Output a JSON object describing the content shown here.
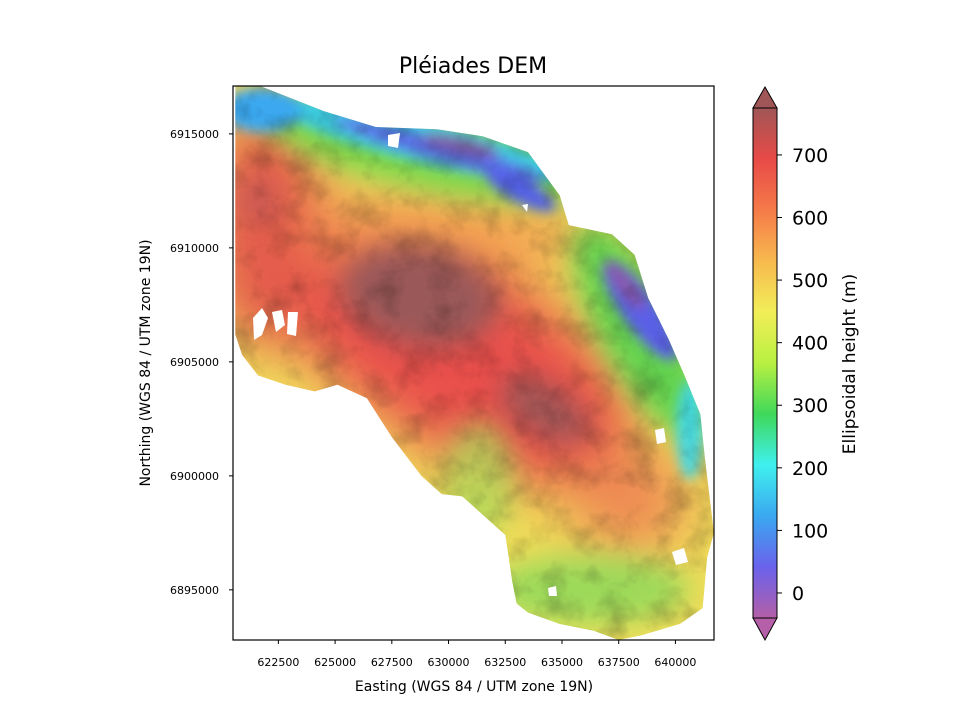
{
  "title": "Pléiades DEM",
  "xlabel": "Easting (WGS 84 / UTM zone 19N)",
  "ylabel": "Northing (WGS 84 / UTM zone 19N)",
  "colorbar": {
    "label": "Ellipsoidal height (m)",
    "min": -40,
    "max": 775,
    "extend": "both",
    "ticks": [
      0,
      100,
      200,
      300,
      400,
      500,
      600,
      700
    ],
    "colors": [
      "#b45fa8",
      "#6a62ec",
      "#3aa8f0",
      "#3ff0ee",
      "#3fd85a",
      "#b8f041",
      "#f2ee58",
      "#f7b94e",
      "#f57a49",
      "#e84a47",
      "#a05656"
    ]
  },
  "axes": {
    "xlim": [
      620500,
      641700
    ],
    "ylim": [
      6892800,
      6917100
    ],
    "xticks": [
      622500,
      625000,
      627500,
      630000,
      632500,
      635000,
      637500,
      640000
    ],
    "yticks": [
      6895000,
      6900000,
      6905000,
      6910000,
      6915000
    ]
  },
  "map": {
    "boundary_easting_northing": [
      [
        620600,
        6917100
      ],
      [
        621700,
        6917100
      ],
      [
        624500,
        6916000
      ],
      [
        626800,
        6915300
      ],
      [
        629500,
        6915200
      ],
      [
        631500,
        6914900
      ],
      [
        633500,
        6914200
      ],
      [
        634900,
        6912300
      ],
      [
        635300,
        6911000
      ],
      [
        637200,
        6910600
      ],
      [
        638200,
        6909700
      ],
      [
        638800,
        6907800
      ],
      [
        639700,
        6906000
      ],
      [
        640400,
        6904400
      ],
      [
        641100,
        6902700
      ],
      [
        641300,
        6900800
      ],
      [
        641700,
        6897500
      ],
      [
        641400,
        6896400
      ],
      [
        641200,
        6894200
      ],
      [
        640200,
        6893500
      ],
      [
        638500,
        6893000
      ],
      [
        637500,
        6892800
      ],
      [
        636400,
        6893200
      ],
      [
        634900,
        6893500
      ],
      [
        633500,
        6894000
      ],
      [
        633000,
        6894400
      ],
      [
        632800,
        6895400
      ],
      [
        632500,
        6897400
      ],
      [
        631500,
        6898300
      ],
      [
        630600,
        6899100
      ],
      [
        629700,
        6899200
      ],
      [
        628800,
        6900000
      ],
      [
        627500,
        6901700
      ],
      [
        626400,
        6903400
      ],
      [
        625100,
        6904000
      ],
      [
        624100,
        6903700
      ],
      [
        622800,
        6904000
      ],
      [
        621600,
        6904400
      ],
      [
        620900,
        6905300
      ],
      [
        620600,
        6906200
      ]
    ],
    "features": [
      {
        "type": "massif",
        "center": [
          629200,
          6908200
        ],
        "height_m": 760
      },
      {
        "type": "ridge",
        "center": [
          634200,
          6902700
        ],
        "height_m": 740
      },
      {
        "type": "upland",
        "center": [
          621300,
          6911900
        ],
        "height_m": 700
      },
      {
        "type": "upland",
        "center": [
          637800,
          6898500
        ],
        "height_m": 650
      },
      {
        "type": "valley",
        "center": [
          628500,
          6913900
        ],
        "height_m": 120
      },
      {
        "type": "valley",
        "center": [
          637800,
          6906700
        ],
        "height_m": 100
      }
    ]
  }
}
